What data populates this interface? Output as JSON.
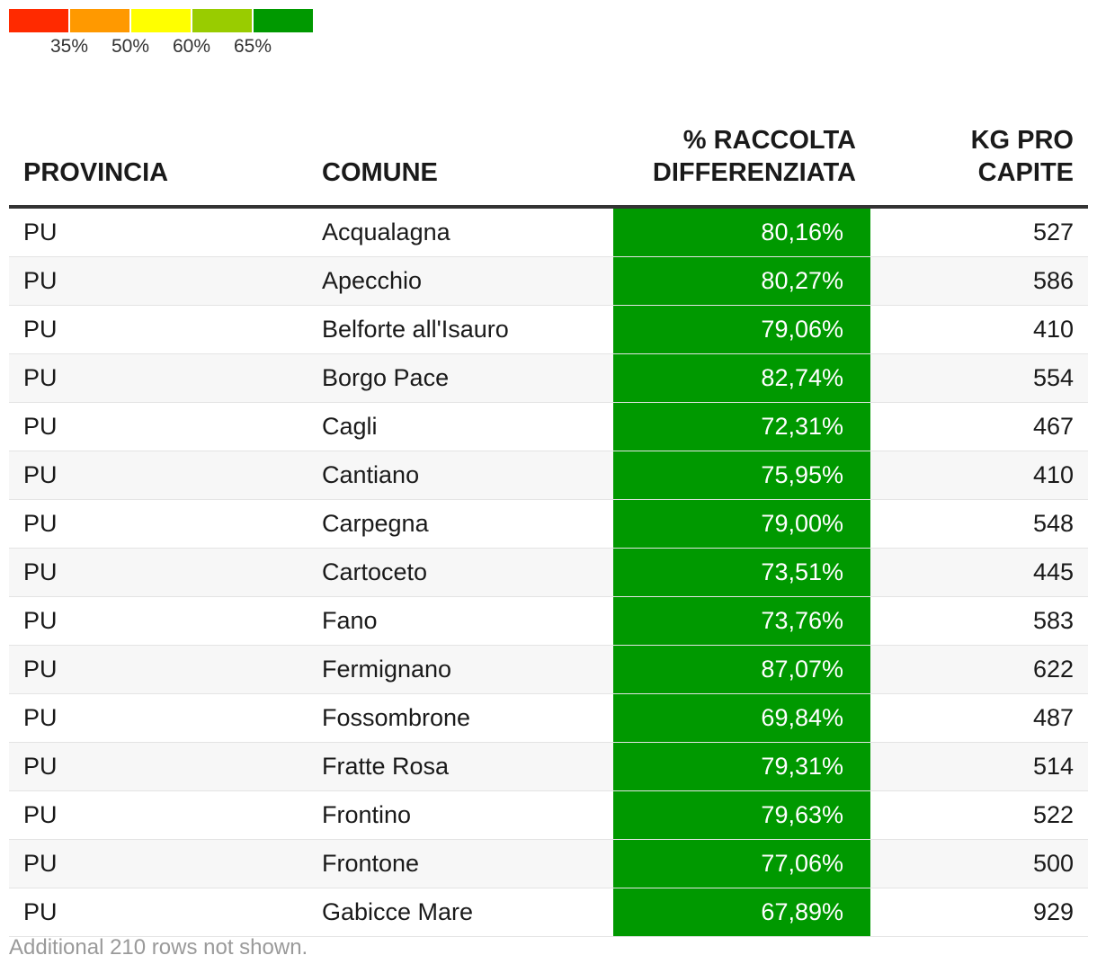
{
  "legend": {
    "colors": [
      "#ff2a00",
      "#ff9900",
      "#ffff00",
      "#99cc00",
      "#009900"
    ],
    "thresholds": [
      "35%",
      "50%",
      "60%",
      "65%"
    ]
  },
  "chart_data": {
    "type": "table",
    "columns": [
      "PROVINCIA",
      "COMUNE",
      "% RACCOLTA DIFFERENZIATA",
      "KG PRO CAPITE"
    ],
    "color_scale": {
      "thresholds": [
        35,
        50,
        60,
        65
      ],
      "colors": [
        "#ff2a00",
        "#ff9900",
        "#ffff00",
        "#99cc00",
        "#009900"
      ]
    },
    "rows": [
      {
        "provincia": "PU",
        "comune": "Acqualagna",
        "pct": "80,16%",
        "pct_value": 80.16,
        "kg": "527"
      },
      {
        "provincia": "PU",
        "comune": "Apecchio",
        "pct": "80,27%",
        "pct_value": 80.27,
        "kg": "586"
      },
      {
        "provincia": "PU",
        "comune": "Belforte all'Isauro",
        "pct": "79,06%",
        "pct_value": 79.06,
        "kg": "410"
      },
      {
        "provincia": "PU",
        "comune": "Borgo Pace",
        "pct": "82,74%",
        "pct_value": 82.74,
        "kg": "554"
      },
      {
        "provincia": "PU",
        "comune": "Cagli",
        "pct": "72,31%",
        "pct_value": 72.31,
        "kg": "467"
      },
      {
        "provincia": "PU",
        "comune": "Cantiano",
        "pct": "75,95%",
        "pct_value": 75.95,
        "kg": "410"
      },
      {
        "provincia": "PU",
        "comune": "Carpegna",
        "pct": "79,00%",
        "pct_value": 79.0,
        "kg": "548"
      },
      {
        "provincia": "PU",
        "comune": "Cartoceto",
        "pct": "73,51%",
        "pct_value": 73.51,
        "kg": "445"
      },
      {
        "provincia": "PU",
        "comune": "Fano",
        "pct": "73,76%",
        "pct_value": 73.76,
        "kg": "583"
      },
      {
        "provincia": "PU",
        "comune": "Fermignano",
        "pct": "87,07%",
        "pct_value": 87.07,
        "kg": "622"
      },
      {
        "provincia": "PU",
        "comune": "Fossombrone",
        "pct": "69,84%",
        "pct_value": 69.84,
        "kg": "487"
      },
      {
        "provincia": "PU",
        "comune": "Fratte Rosa",
        "pct": "79,31%",
        "pct_value": 79.31,
        "kg": "514"
      },
      {
        "provincia": "PU",
        "comune": "Frontino",
        "pct": "79,63%",
        "pct_value": 79.63,
        "kg": "522"
      },
      {
        "provincia": "PU",
        "comune": "Frontone",
        "pct": "77,06%",
        "pct_value": 77.06,
        "kg": "500"
      },
      {
        "provincia": "PU",
        "comune": "Gabicce Mare",
        "pct": "67,89%",
        "pct_value": 67.89,
        "kg": "929"
      }
    ]
  },
  "header": {
    "provincia": "PROVINCIA",
    "comune": "COMUNE",
    "pct_line1": "% RACCOLTA",
    "pct_line2": "DIFFERENZIATA",
    "kg_line1": "KG PRO",
    "kg_line2": "CAPITE"
  },
  "footnote": "Additional 210 rows not shown."
}
